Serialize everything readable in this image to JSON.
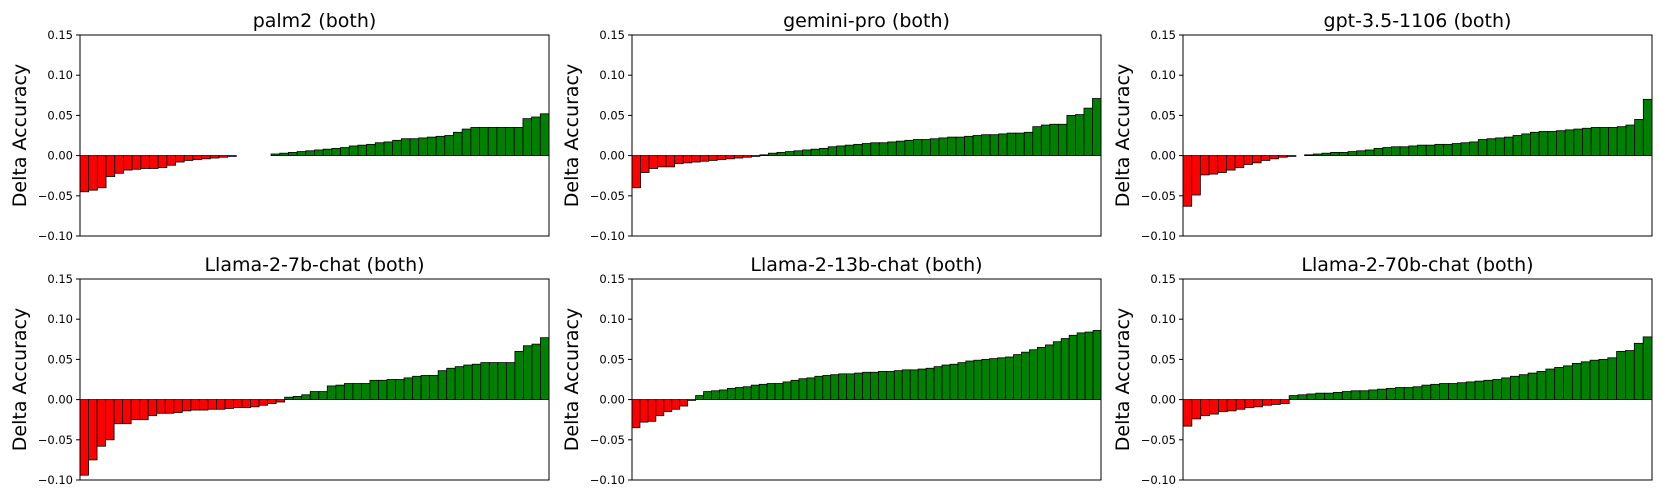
{
  "colors": {
    "positive": "#008000",
    "negative": "#ff0000",
    "edge": "#000000"
  },
  "chart_data": [
    {
      "type": "bar",
      "title": "palm2 (both)",
      "ylabel": "Delta Accuracy",
      "xlabel": "",
      "ylim": [
        -0.1,
        0.15
      ],
      "yticks": [
        "0.15",
        "0.10",
        "0.05",
        "0.00",
        "−0.05",
        "−0.10"
      ],
      "ytick_values": [
        0.15,
        0.1,
        0.05,
        0.0,
        -0.05,
        -0.1
      ],
      "values": [
        -0.045,
        -0.043,
        -0.04,
        -0.026,
        -0.022,
        -0.018,
        -0.017,
        -0.016,
        -0.016,
        -0.015,
        -0.012,
        -0.008,
        -0.006,
        -0.005,
        -0.004,
        -0.003,
        -0.002,
        -0.001,
        0.0,
        0.0,
        0.0,
        0.0,
        0.002,
        0.003,
        0.004,
        0.005,
        0.006,
        0.007,
        0.008,
        0.009,
        0.01,
        0.012,
        0.013,
        0.014,
        0.016,
        0.017,
        0.019,
        0.021,
        0.021,
        0.022,
        0.023,
        0.024,
        0.025,
        0.029,
        0.033,
        0.035,
        0.035,
        0.035,
        0.035,
        0.035,
        0.035,
        0.046,
        0.048,
        0.052
      ]
    },
    {
      "type": "bar",
      "title": "gemini-pro (both)",
      "ylabel": "Delta Accuracy",
      "xlabel": "",
      "ylim": [
        -0.1,
        0.15
      ],
      "yticks": [
        "0.15",
        "0.10",
        "0.05",
        "0.00",
        "−0.05",
        "−0.10"
      ],
      "ytick_values": [
        0.15,
        0.1,
        0.05,
        0.0,
        -0.05,
        -0.1
      ],
      "values": [
        -0.04,
        -0.021,
        -0.016,
        -0.014,
        -0.014,
        -0.01,
        -0.009,
        -0.008,
        -0.007,
        -0.006,
        -0.005,
        -0.004,
        -0.003,
        -0.002,
        -0.001,
        0.001,
        0.003,
        0.004,
        0.005,
        0.006,
        0.007,
        0.008,
        0.009,
        0.011,
        0.012,
        0.013,
        0.014,
        0.015,
        0.016,
        0.016,
        0.017,
        0.018,
        0.019,
        0.02,
        0.02,
        0.021,
        0.022,
        0.023,
        0.023,
        0.024,
        0.025,
        0.026,
        0.026,
        0.027,
        0.028,
        0.028,
        0.029,
        0.036,
        0.038,
        0.039,
        0.039,
        0.05,
        0.051,
        0.059,
        0.071
      ]
    },
    {
      "type": "bar",
      "title": "gpt-3.5-1106 (both)",
      "ylabel": "Delta Accuracy",
      "xlabel": "",
      "ylim": [
        -0.1,
        0.15
      ],
      "yticks": [
        "0.15",
        "0.10",
        "0.05",
        "0.00",
        "−0.05",
        "−0.10"
      ],
      "ytick_values": [
        0.15,
        0.1,
        0.05,
        0.0,
        -0.05,
        -0.1
      ],
      "values": [
        -0.063,
        -0.049,
        -0.024,
        -0.023,
        -0.021,
        -0.018,
        -0.015,
        -0.011,
        -0.009,
        -0.006,
        -0.004,
        -0.002,
        -0.001,
        0.0,
        0.001,
        0.002,
        0.003,
        0.004,
        0.004,
        0.005,
        0.006,
        0.007,
        0.009,
        0.01,
        0.011,
        0.011,
        0.012,
        0.013,
        0.013,
        0.014,
        0.014,
        0.015,
        0.016,
        0.017,
        0.02,
        0.021,
        0.022,
        0.023,
        0.025,
        0.027,
        0.029,
        0.03,
        0.03,
        0.031,
        0.032,
        0.033,
        0.034,
        0.035,
        0.035,
        0.035,
        0.036,
        0.038,
        0.045,
        0.07
      ]
    },
    {
      "type": "bar",
      "title": "Llama-2-7b-chat (both)",
      "ylabel": "Delta Accuracy",
      "xlabel": "",
      "ylim": [
        -0.1,
        0.15
      ],
      "yticks": [
        "0.15",
        "0.10",
        "0.05",
        "0.00",
        "−0.05",
        "−0.10"
      ],
      "ytick_values": [
        0.15,
        0.1,
        0.05,
        0.0,
        -0.05,
        -0.1
      ],
      "values": [
        -0.094,
        -0.075,
        -0.058,
        -0.05,
        -0.03,
        -0.03,
        -0.025,
        -0.025,
        -0.02,
        -0.017,
        -0.017,
        -0.016,
        -0.014,
        -0.013,
        -0.013,
        -0.012,
        -0.012,
        -0.011,
        -0.01,
        -0.01,
        -0.009,
        -0.007,
        -0.005,
        -0.003,
        0.003,
        0.004,
        0.006,
        0.01,
        0.01,
        0.017,
        0.018,
        0.02,
        0.02,
        0.02,
        0.024,
        0.024,
        0.025,
        0.025,
        0.027,
        0.029,
        0.03,
        0.03,
        0.036,
        0.039,
        0.041,
        0.043,
        0.044,
        0.046,
        0.046,
        0.046,
        0.046,
        0.06,
        0.067,
        0.069,
        0.077
      ]
    },
    {
      "type": "bar",
      "title": "Llama-2-13b-chat (both)",
      "ylabel": "Delta Accuracy",
      "xlabel": "",
      "ylim": [
        -0.1,
        0.15
      ],
      "yticks": [
        "0.15",
        "0.10",
        "0.05",
        "0.00",
        "−0.05",
        "−0.10"
      ],
      "ytick_values": [
        0.15,
        0.1,
        0.05,
        0.0,
        -0.05,
        -0.1
      ],
      "values": [
        -0.035,
        -0.028,
        -0.027,
        -0.02,
        -0.015,
        -0.012,
        -0.008,
        -0.001,
        0.005,
        0.01,
        0.011,
        0.012,
        0.014,
        0.015,
        0.016,
        0.018,
        0.019,
        0.02,
        0.02,
        0.022,
        0.024,
        0.026,
        0.027,
        0.029,
        0.03,
        0.031,
        0.032,
        0.032,
        0.033,
        0.034,
        0.034,
        0.035,
        0.035,
        0.036,
        0.037,
        0.037,
        0.038,
        0.039,
        0.041,
        0.043,
        0.044,
        0.046,
        0.048,
        0.049,
        0.05,
        0.051,
        0.052,
        0.053,
        0.056,
        0.059,
        0.062,
        0.065,
        0.068,
        0.072,
        0.076,
        0.08,
        0.083,
        0.084,
        0.086
      ]
    },
    {
      "type": "bar",
      "title": "Llama-2-70b-chat (both)",
      "ylabel": "Delta Accuracy",
      "xlabel": "",
      "ylim": [
        -0.1,
        0.15
      ],
      "yticks": [
        "0.15",
        "0.10",
        "0.05",
        "0.00",
        "−0.05",
        "−0.10"
      ],
      "ytick_values": [
        0.15,
        0.1,
        0.05,
        0.0,
        -0.05,
        -0.1
      ],
      "values": [
        -0.033,
        -0.024,
        -0.02,
        -0.018,
        -0.015,
        -0.014,
        -0.012,
        -0.01,
        -0.009,
        -0.007,
        -0.006,
        -0.005,
        0.005,
        0.006,
        0.007,
        0.008,
        0.008,
        0.009,
        0.01,
        0.011,
        0.011,
        0.012,
        0.013,
        0.014,
        0.015,
        0.015,
        0.016,
        0.018,
        0.019,
        0.02,
        0.02,
        0.021,
        0.022,
        0.023,
        0.024,
        0.025,
        0.027,
        0.029,
        0.031,
        0.033,
        0.035,
        0.038,
        0.04,
        0.042,
        0.045,
        0.047,
        0.049,
        0.05,
        0.052,
        0.06,
        0.061,
        0.07,
        0.078
      ]
    }
  ]
}
